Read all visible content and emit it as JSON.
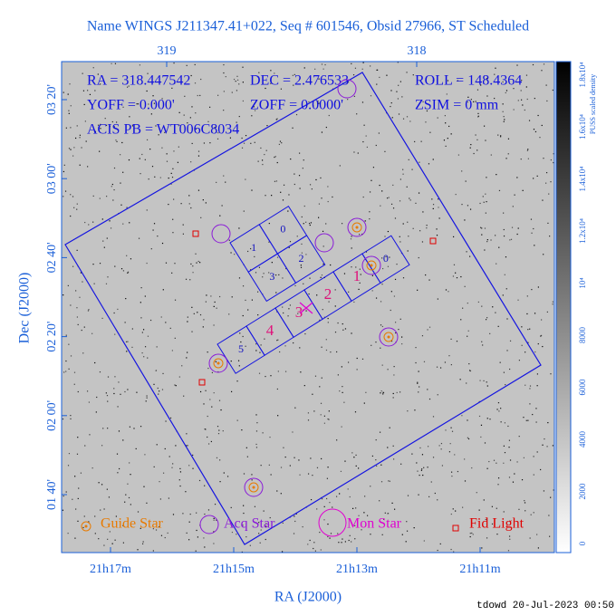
{
  "title": "Name WINGS J211347.41+022, Seq # 601546, Obsid 27966, ST Scheduled",
  "info": {
    "ra": "RA = 318.447542",
    "dec": "DEC = 2.476533",
    "roll": "ROLL = 148.4364",
    "yoff": "YOFF = 0.000'",
    "zoff": "ZOFF = 0.0000'",
    "zsim": "ZSIM = 0 mm",
    "acis": "ACIS PB = WT006C8034"
  },
  "axes": {
    "x_label": "RA (J2000)",
    "y_label": "Dec (J2000)",
    "x_ticks": [
      "21h17m",
      "21h15m",
      "21h13m",
      "21h11m"
    ],
    "top_ticks": [
      "319",
      "318"
    ],
    "y_ticks": [
      "03 20'",
      "03 00'",
      "02 40'",
      "02 20'",
      "02 00'",
      "01 40'"
    ]
  },
  "colorbar": {
    "label": "PUSS scaled density",
    "ticks": [
      "0",
      "2000",
      "4000",
      "6000",
      "8000",
      "10⁴",
      "1.2x10⁴",
      "1.4x10⁴",
      "1.6x10⁴",
      "1.8x10⁴"
    ]
  },
  "chips": {
    "i_array": [
      "0",
      "1",
      "2",
      "3"
    ],
    "s_array": [
      "0",
      "1",
      "2",
      "3",
      "4",
      "5"
    ]
  },
  "legend": {
    "guide": "Guide Star",
    "acq": "Acq Star",
    "mon": "Mon Star",
    "fid": "Fid Light"
  },
  "footer": "tdowd 20-Jul-2023 00:50"
}
